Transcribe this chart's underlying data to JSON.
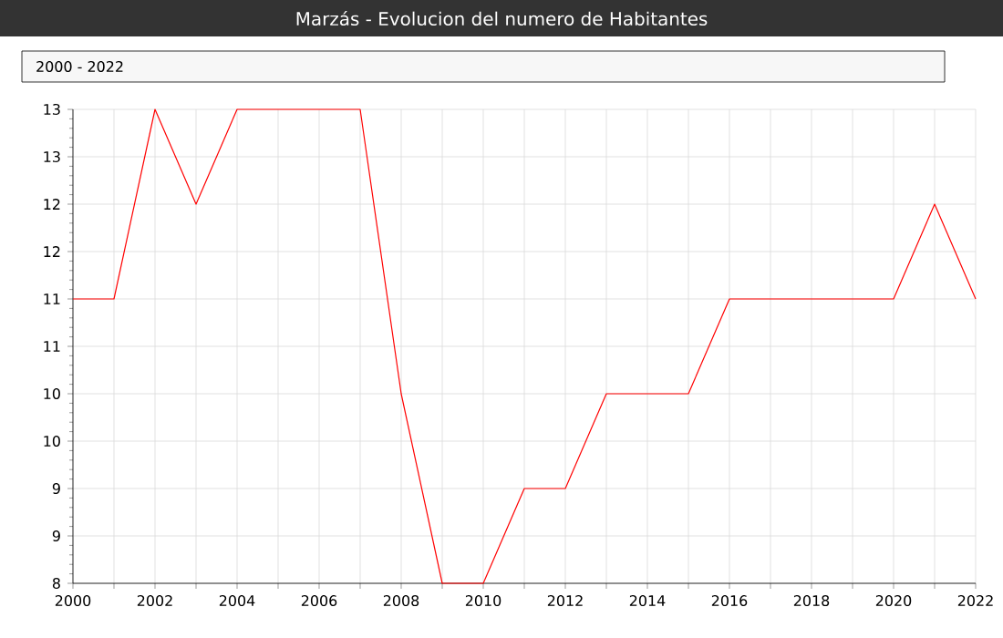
{
  "chart_data": {
    "type": "line",
    "title": "Marzás - Evolucion del numero de Habitantes",
    "subtitle": "2000 - 2022",
    "x": [
      2000,
      2001,
      2002,
      2003,
      2004,
      2005,
      2006,
      2007,
      2008,
      2009,
      2010,
      2011,
      2012,
      2013,
      2014,
      2015,
      2016,
      2017,
      2018,
      2019,
      2020,
      2021,
      2022
    ],
    "series": [
      {
        "color": "#ff0000",
        "values": [
          11,
          11,
          13,
          12,
          13,
          13,
          13,
          13,
          10,
          8,
          8,
          9,
          9,
          10,
          10,
          10,
          11,
          11,
          11,
          11,
          11,
          12,
          11
        ]
      }
    ],
    "xlim": [
      2000,
      2022
    ],
    "xticks": [
      2000,
      {
        "value": 2001,
        "label": null
      },
      2002,
      {
        "value": 2003,
        "label": null
      },
      2004,
      {
        "value": 2005,
        "label": null
      },
      2006,
      {
        "value": 2007,
        "label": null
      },
      2008,
      {
        "value": 2009,
        "label": null
      },
      2010,
      {
        "value": 2011,
        "label": null
      },
      2012,
      {
        "value": 2013,
        "label": null
      },
      2014,
      {
        "value": 2015,
        "label": null
      },
      2016,
      {
        "value": 2017,
        "label": null
      },
      2018,
      {
        "value": 2019,
        "label": null
      },
      2020,
      {
        "value": 2021,
        "label": null
      },
      2022
    ],
    "ylim": [
      8,
      13
    ],
    "yticks": [
      8,
      {
        "value": 8.5,
        "label": "9"
      },
      9,
      {
        "value": 9.5,
        "label": "10"
      },
      10,
      {
        "value": 10.5,
        "label": "11"
      },
      11,
      {
        "value": 11.5,
        "label": "12"
      },
      12,
      {
        "value": 12.5,
        "label": "13"
      },
      13
    ],
    "grid": true,
    "marker": "none",
    "line_style": "solid"
  }
}
